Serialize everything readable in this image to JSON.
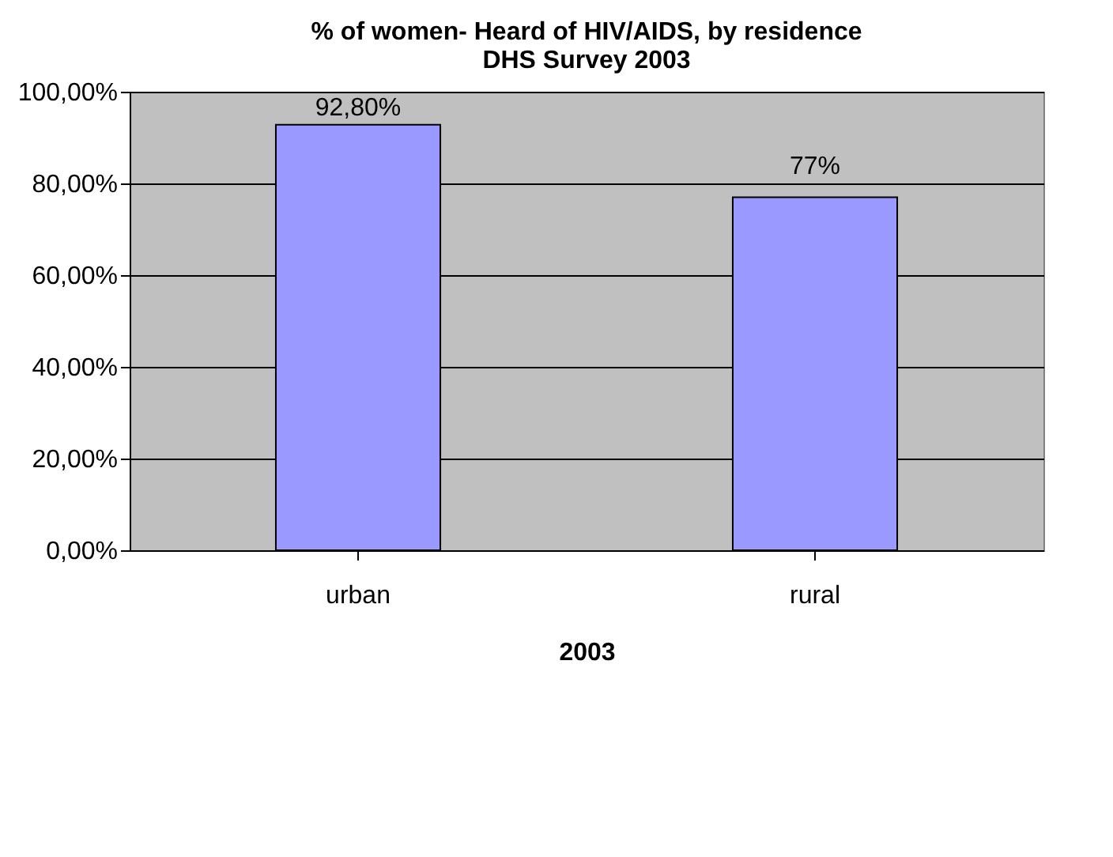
{
  "chart_data": {
    "type": "bar",
    "title": "% of women- Heard of HIV/AIDS, by residence\nDHS Survey 2003",
    "xlabel": "2003",
    "categories": [
      "urban",
      "rural"
    ],
    "series": [
      {
        "color": "#9999ff",
        "values": [
          92.8,
          77
        ]
      }
    ],
    "value_labels": [
      "92,80%",
      "77%"
    ],
    "ylim": [
      0,
      100
    ],
    "yticks": [
      {
        "value": 0,
        "label": "0,00%"
      },
      {
        "value": 20,
        "label": "20,00%"
      },
      {
        "value": 40,
        "label": "40,00%"
      },
      {
        "value": 60,
        "label": "60,00%"
      },
      {
        "value": 80,
        "label": "80,00%"
      },
      {
        "value": 100,
        "label": "100,00%"
      }
    ],
    "grid": "y"
  }
}
